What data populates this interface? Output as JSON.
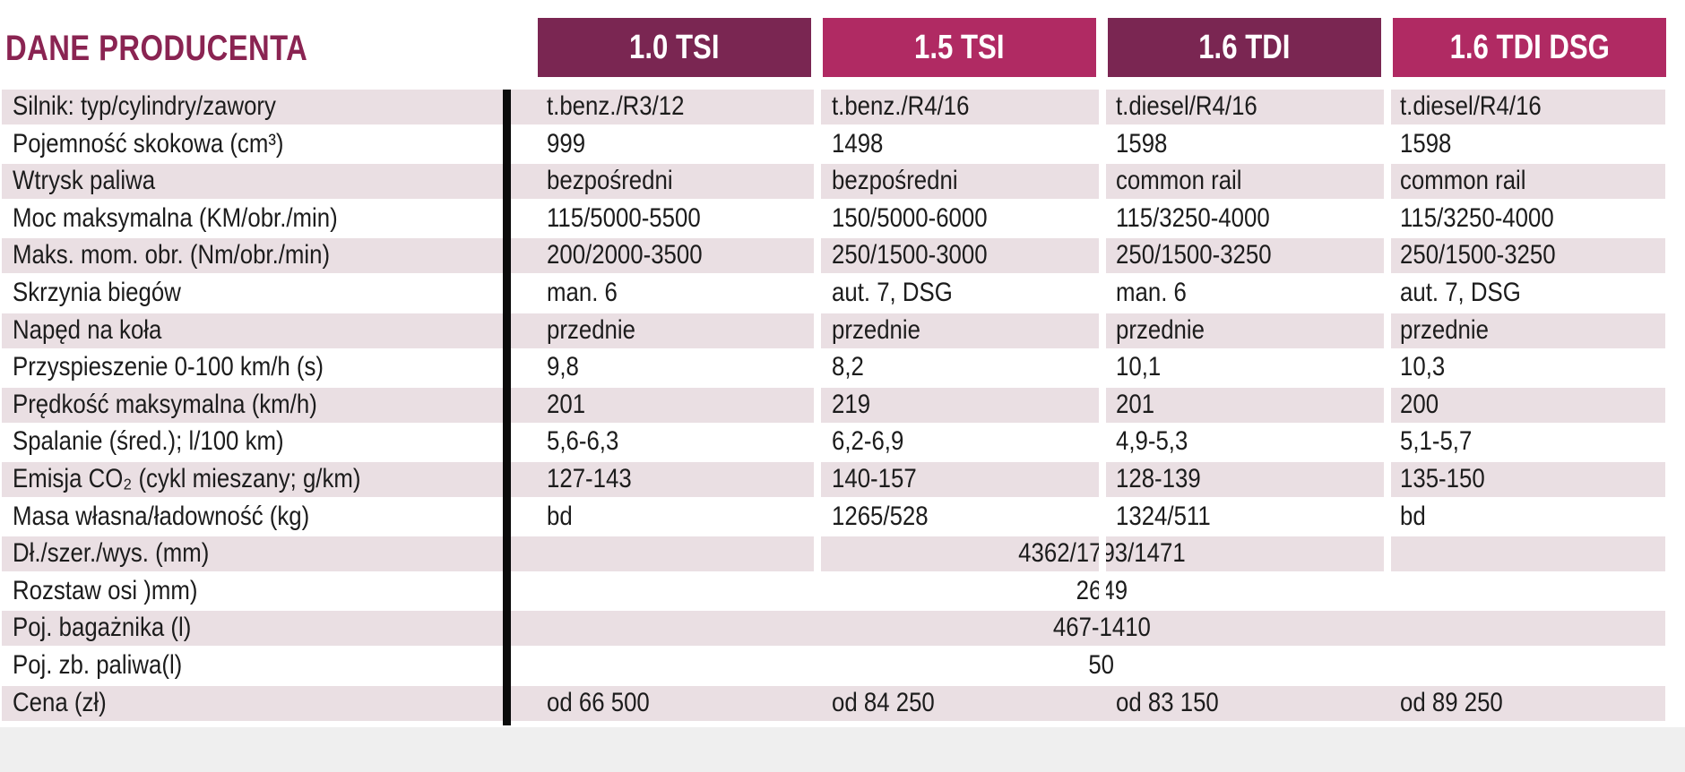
{
  "title": "DANE PRODUCENTA",
  "columns": [
    "1.0 TSI",
    "1.5 TSI",
    "1.6 TDI",
    "1.6 TDI DSG"
  ],
  "rows": [
    {
      "label": "Silnik: typ/cylindry/zawory",
      "values": [
        "t.benz./R3/12",
        "t.benz./R4/16",
        "t.diesel/R4/16",
        "t.diesel/R4/16"
      ]
    },
    {
      "label": "Pojemność skokowa (cm³)",
      "values": [
        "999",
        "1498",
        "1598",
        "1598"
      ]
    },
    {
      "label": "Wtrysk paliwa",
      "values": [
        "bezpośredni",
        "bezpośredni",
        "common rail",
        "common rail"
      ]
    },
    {
      "label": "Moc maksymalna (KM/obr./min)",
      "values": [
        "115/5000-5500",
        "150/5000-6000",
        "115/3250-4000",
        "115/3250-4000"
      ]
    },
    {
      "label": "Maks. mom. obr. (Nm/obr./min)",
      "values": [
        "200/2000-3500",
        "250/1500-3000",
        "250/1500-3250",
        "250/1500-3250"
      ]
    },
    {
      "label": "Skrzynia biegów",
      "values": [
        "man. 6",
        "aut. 7, DSG",
        "man. 6",
        "aut. 7, DSG"
      ]
    },
    {
      "label": "Napęd na koła",
      "values": [
        "przednie",
        "przednie",
        "przednie",
        "przednie"
      ]
    },
    {
      "label": "Przyspieszenie 0-100 km/h (s)",
      "values": [
        "9,8",
        "8,2",
        "10,1",
        "10,3"
      ]
    },
    {
      "label": "Prędkość maksymalna (km/h)",
      "values": [
        "201",
        "219",
        "201",
        "200"
      ]
    },
    {
      "label": "Spalanie (śred.); l/100 km)",
      "values": [
        "5,6-6,3",
        "6,2-6,9",
        "4,9-5,3",
        "5,1-5,7"
      ]
    },
    {
      "label": "Emisja CO₂ (cykl mieszany; g/km)",
      "values": [
        "127-143",
        "140-157",
        "128-139",
        "135-150"
      ]
    },
    {
      "label": "Masa własna/ładowność (kg)",
      "values": [
        "bd",
        "1265/528",
        "1324/511",
        "bd"
      ]
    },
    {
      "label": "Dł./szer./wys. (mm)",
      "span": "4362/1793/1471"
    },
    {
      "label": "Rozstaw osi )mm)",
      "span": "2649"
    },
    {
      "label": "Poj. bagażnika (l)",
      "span": "467-1410"
    },
    {
      "label": "Poj. zb. paliwa(l)",
      "span": "50"
    },
    {
      "label": "Cena (zł)",
      "values": [
        "od 66 500",
        "od 84 250",
        "od 83 150",
        "od 89 250"
      ]
    }
  ]
}
